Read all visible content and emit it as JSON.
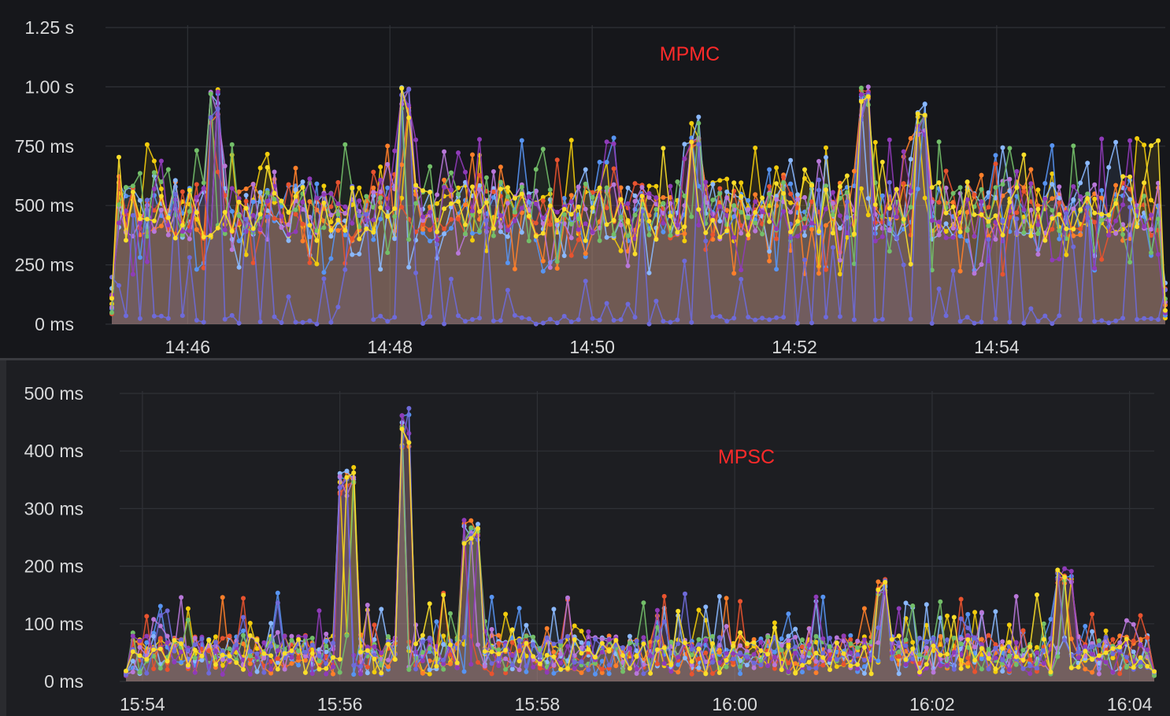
{
  "chart_data": [
    {
      "type": "line",
      "title": "MPMC",
      "unit": "latency",
      "ylim": [
        0,
        1.25
      ],
      "y_unit": "s",
      "y_ticks": [
        "0 ms",
        "250 ms",
        "500 ms",
        "750 ms",
        "1.00 s",
        "1.25 s"
      ],
      "y_tick_values": [
        0,
        0.25,
        0.5,
        0.75,
        1.0,
        1.25
      ],
      "x_ticks": [
        "14:46",
        "14:48",
        "14:50",
        "14:52",
        "14:54"
      ],
      "x_range": [
        "14:45:15",
        "14:55:40"
      ],
      "grid": true,
      "fill": true,
      "colors": [
        "#f2cc0c",
        "#5794f2",
        "#ff7f2a",
        "#8ab8ff",
        "#e8532f",
        "#b877d9",
        "#73bf69",
        "#8f3bb8",
        "#6e6ad9",
        "#fade2a"
      ],
      "series_count": 10,
      "baseline_band": [
        0.35,
        0.6
      ],
      "peaks": [
        {
          "x": "14:46:17",
          "y": 0.99
        },
        {
          "x": "14:48:10",
          "y": 1.01
        },
        {
          "x": "14:51:00",
          "y": 0.88
        },
        {
          "x": "14:52:42",
          "y": 1.01
        },
        {
          "x": "14:53:15",
          "y": 0.93
        }
      ]
    },
    {
      "type": "line",
      "title": "MPSC",
      "unit": "latency",
      "ylim": [
        0,
        500
      ],
      "y_unit": "ms",
      "y_ticks": [
        "0 ms",
        "100 ms",
        "200 ms",
        "300 ms",
        "400 ms",
        "500 ms"
      ],
      "y_tick_values": [
        0,
        100,
        200,
        300,
        400,
        500
      ],
      "x_ticks": [
        "15:54",
        "15:56",
        "15:58",
        "16:00",
        "16:02",
        "16:04"
      ],
      "x_range": [
        "15:53:50",
        "16:04:15"
      ],
      "grid": true,
      "fill": true,
      "colors": [
        "#f2cc0c",
        "#5794f2",
        "#ff7f2a",
        "#8ab8ff",
        "#e8532f",
        "#b877d9",
        "#73bf69",
        "#8f3bb8",
        "#6e6ad9",
        "#fade2a"
      ],
      "series_count": 10,
      "baseline_band": [
        20,
        80
      ],
      "peaks": [
        {
          "x": "15:56:05",
          "y": 372
        },
        {
          "x": "15:56:40",
          "y": 475
        },
        {
          "x": "15:57:20",
          "y": 280
        },
        {
          "x": "16:01:30",
          "y": 178
        },
        {
          "x": "16:03:20",
          "y": 200
        }
      ]
    }
  ]
}
